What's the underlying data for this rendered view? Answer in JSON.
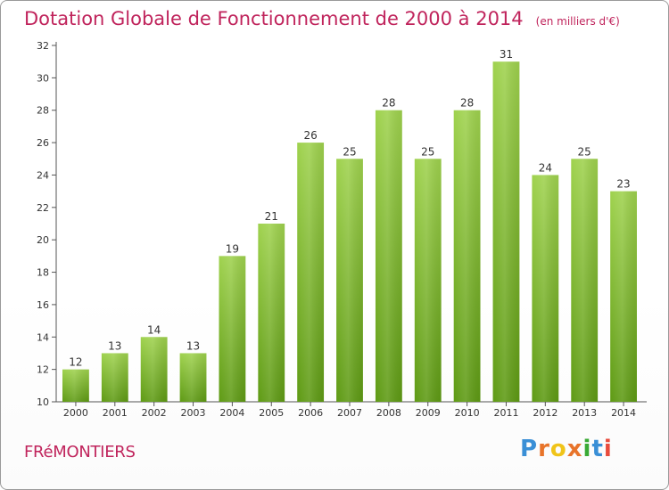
{
  "chart_data": {
    "type": "bar",
    "title": "Dotation Globale de Fonctionnement de 2000 à 2014",
    "subtitle": "(en milliers d'€)",
    "categories": [
      "2000",
      "2001",
      "2002",
      "2003",
      "2004",
      "2005",
      "2006",
      "2007",
      "2008",
      "2009",
      "2010",
      "2011",
      "2012",
      "2013",
      "2014"
    ],
    "values": [
      12,
      13,
      14,
      13,
      19,
      21,
      26,
      25,
      28,
      25,
      28,
      31,
      24,
      25,
      23
    ],
    "xlabel": "",
    "ylabel": "",
    "ylim": [
      10,
      32
    ],
    "yticks": [
      10,
      12,
      14,
      16,
      18,
      20,
      22,
      24,
      26,
      28,
      30,
      32
    ],
    "data_labels": true,
    "grid": false,
    "colors": {
      "bar_top": "#9fd24e",
      "bar_bottom": "#5e9a14",
      "axis": "#555555",
      "text": "#333333"
    }
  },
  "footer": {
    "commune": "FRéMONTIERS",
    "brand": "Proxiti",
    "brand_colors": [
      "#3a8fd6",
      "#e8742a",
      "#f0c419",
      "#e8742a",
      "#3aaa35",
      "#3a8fd6",
      "#e84c3d"
    ]
  },
  "colors": {
    "accent": "#c0245c"
  }
}
